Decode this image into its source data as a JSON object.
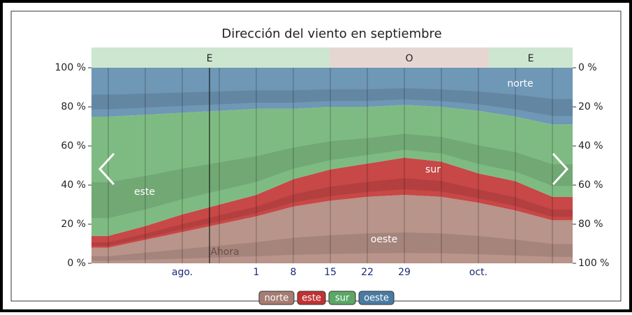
{
  "chart_data": {
    "type": "stacked-area",
    "title": "Dirección del viento en septiembre",
    "categories": [
      null,
      null,
      "ago.",
      null,
      "1",
      "8",
      "15",
      "22",
      "29",
      null,
      "oct.",
      null,
      null
    ],
    "series": [
      {
        "name": "oeste",
        "color": "#b8948a",
        "values": [
          8,
          12,
          16,
          20,
          24,
          29,
          32,
          34,
          35,
          34,
          31,
          27,
          22
        ]
      },
      {
        "name": "sur",
        "color": "#c84747",
        "values": [
          6,
          7,
          9,
          10,
          11,
          14,
          16,
          17,
          19,
          18,
          15,
          15,
          12
        ]
      },
      {
        "name": "este",
        "color": "#7ebb82",
        "values": [
          61,
          57,
          52,
          48,
          44,
          36,
          32,
          29,
          27,
          28,
          32,
          33,
          37
        ]
      },
      {
        "name": "norte",
        "color": "#6f97b6",
        "values": [
          25,
          24,
          23,
          22,
          21,
          21,
          20,
          20,
          19,
          20,
          22,
          25,
          29
        ]
      }
    ],
    "legend_colors": [
      "#4b7ba1",
      "#5da766",
      "#bf3333",
      "#a57d72"
    ],
    "ylim": [
      0,
      100
    ],
    "yticks": [
      {
        "value": 0,
        "label": "0 %"
      },
      {
        "value": 20,
        "label": "20 %"
      },
      {
        "value": 40,
        "label": "40 %"
      },
      {
        "value": 60,
        "label": "60 %"
      },
      {
        "value": 80,
        "label": "80 %"
      },
      {
        "value": 100,
        "label": "100 %"
      }
    ],
    "y2lim": [
      100,
      0
    ],
    "y2ticks": [
      {
        "value": 100,
        "label": "100 %"
      },
      {
        "value": 80,
        "label": "80 %"
      },
      {
        "value": 60,
        "label": "60 %"
      },
      {
        "value": 40,
        "label": "40 %"
      },
      {
        "value": 20,
        "label": "20 %"
      },
      {
        "value": 0,
        "label": "0 %"
      }
    ],
    "bands": [
      "E",
      "O",
      "E"
    ],
    "annotation": "Ahora"
  }
}
